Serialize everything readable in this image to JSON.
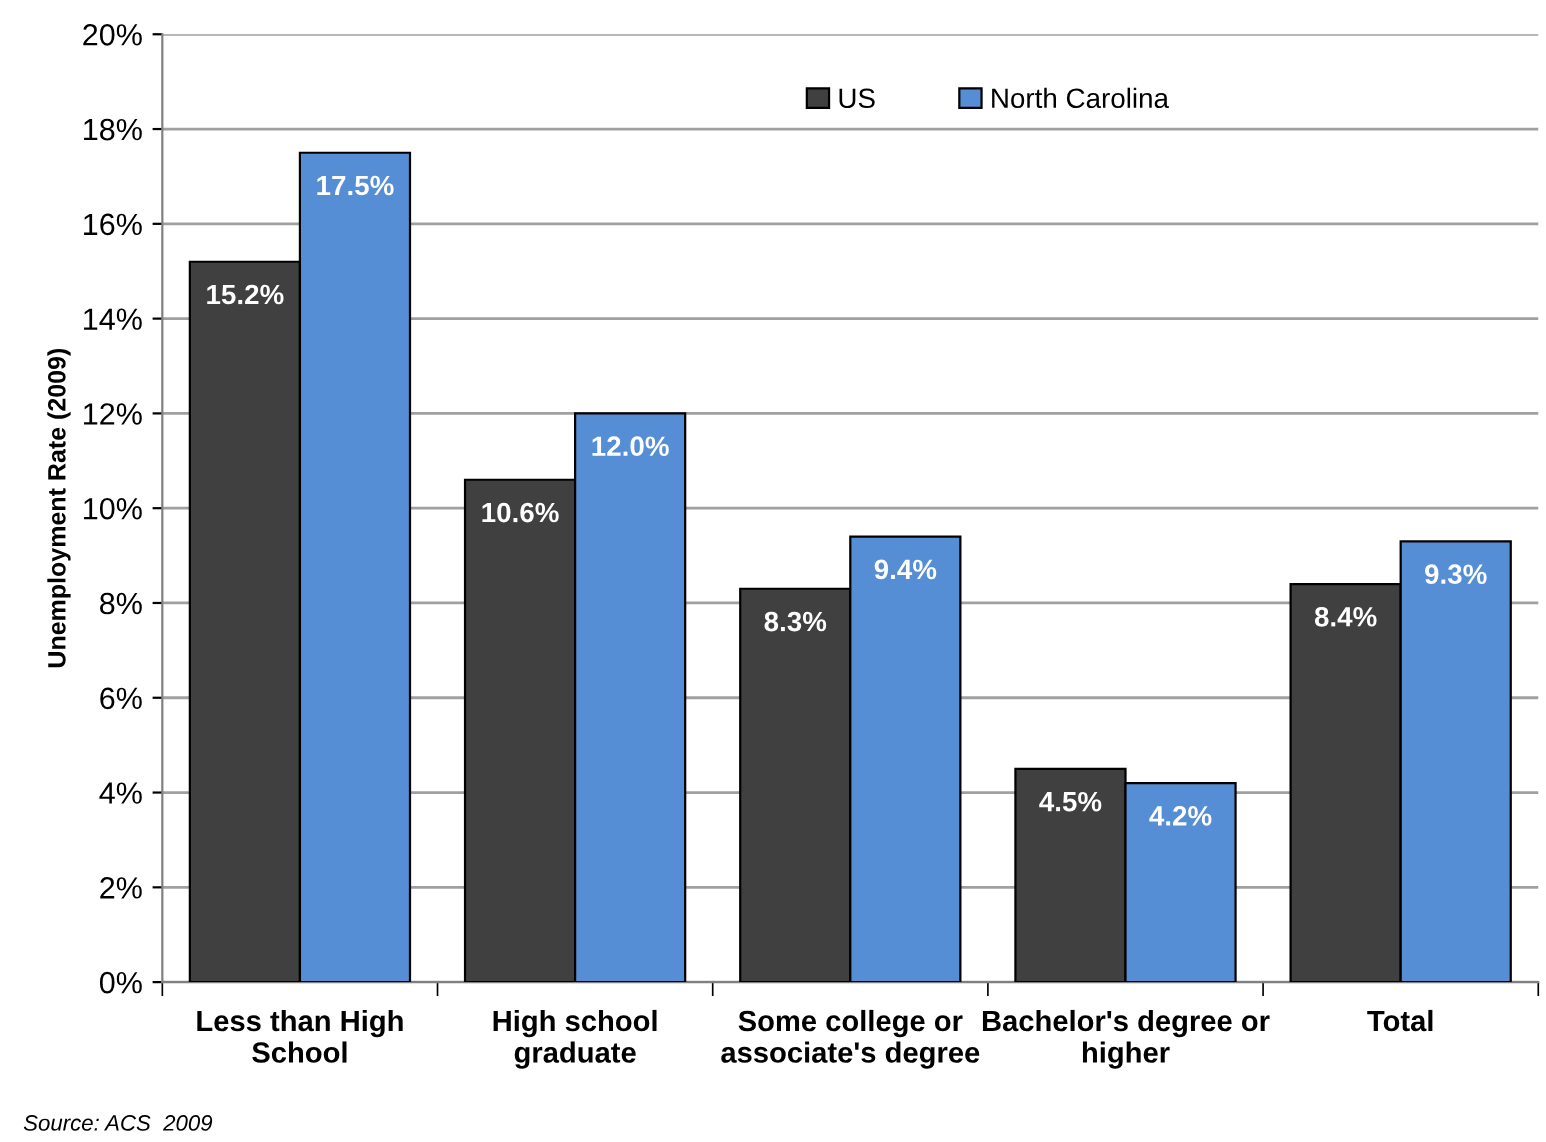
{
  "chart_data": {
    "type": "bar",
    "ylabel": "Unemployment Rate (2009)",
    "categories": [
      "Less than High\nSchool",
      "High school\ngraduate",
      "Some college or\nassociate's degree",
      "Bachelor's degree or\nhigher",
      "Total"
    ],
    "series": [
      {
        "name": "US",
        "color": "#404040",
        "values": [
          15.2,
          10.6,
          8.3,
          4.5,
          8.4
        ],
        "value_labels": [
          "15.2%",
          "10.6%",
          "8.3%",
          "4.5%",
          "8.4%"
        ]
      },
      {
        "name": "North Carolina",
        "color": "#558ed5",
        "values": [
          17.5,
          12.0,
          9.4,
          4.2,
          9.3
        ],
        "value_labels": [
          "17.5%",
          "12.0%",
          "9.4%",
          "4.2%",
          "9.3%"
        ]
      }
    ],
    "ylim": [
      0,
      20
    ],
    "yticks": [
      {
        "value": 0,
        "label": "0%"
      },
      {
        "value": 2,
        "label": "2%"
      },
      {
        "value": 4,
        "label": "4%"
      },
      {
        "value": 6,
        "label": "6%"
      },
      {
        "value": 8,
        "label": "8%"
      },
      {
        "value": 10,
        "label": "10%"
      },
      {
        "value": 12,
        "label": "12%"
      },
      {
        "value": 14,
        "label": "14%"
      },
      {
        "value": 16,
        "label": "16%"
      },
      {
        "value": 18,
        "label": "18%"
      },
      {
        "value": 20,
        "label": "20%"
      }
    ],
    "grid": "y",
    "legend": "top",
    "annotations": [
      "Source: ACS  2009"
    ]
  }
}
